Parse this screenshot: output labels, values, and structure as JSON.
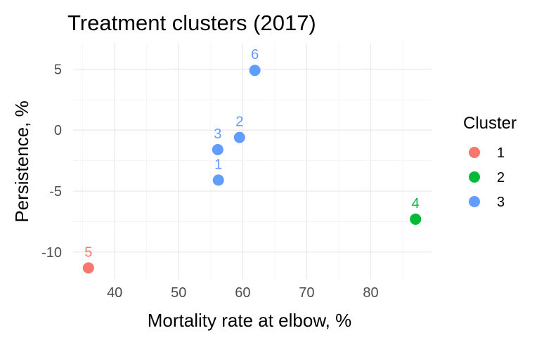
{
  "chart_data": {
    "type": "scatter",
    "title": "Treatment clusters (2017)",
    "xlabel": "Mortality rate at elbow, %",
    "ylabel": "Persistence, %",
    "xlim": [
      33.5,
      89.5
    ],
    "ylim": [
      -12.2,
      7.1
    ],
    "x_ticks": [
      40,
      50,
      60,
      70,
      80
    ],
    "y_ticks": [
      -10,
      -5,
      0,
      5
    ],
    "x_tick_labels": [
      "40",
      "50",
      "60",
      "70",
      "80"
    ],
    "y_tick_labels": [
      "-10",
      "-5",
      "0",
      "5"
    ],
    "grid": true,
    "legend": {
      "title": "Cluster",
      "position": "right",
      "entries": [
        {
          "label": "1",
          "color": "#F8766D"
        },
        {
          "label": "2",
          "color": "#00BA38"
        },
        {
          "label": "3",
          "color": "#619CFF"
        }
      ]
    },
    "points": [
      {
        "label": "1",
        "x": 56.2,
        "y": -4.1,
        "cluster": "3"
      },
      {
        "label": "2",
        "x": 59.5,
        "y": -0.6,
        "cluster": "3"
      },
      {
        "label": "3",
        "x": 56.1,
        "y": -1.6,
        "cluster": "3"
      },
      {
        "label": "4",
        "x": 87.0,
        "y": -7.3,
        "cluster": "2"
      },
      {
        "label": "5",
        "x": 35.9,
        "y": -11.3,
        "cluster": "1"
      },
      {
        "label": "6",
        "x": 61.9,
        "y": 4.9,
        "cluster": "3"
      }
    ]
  }
}
